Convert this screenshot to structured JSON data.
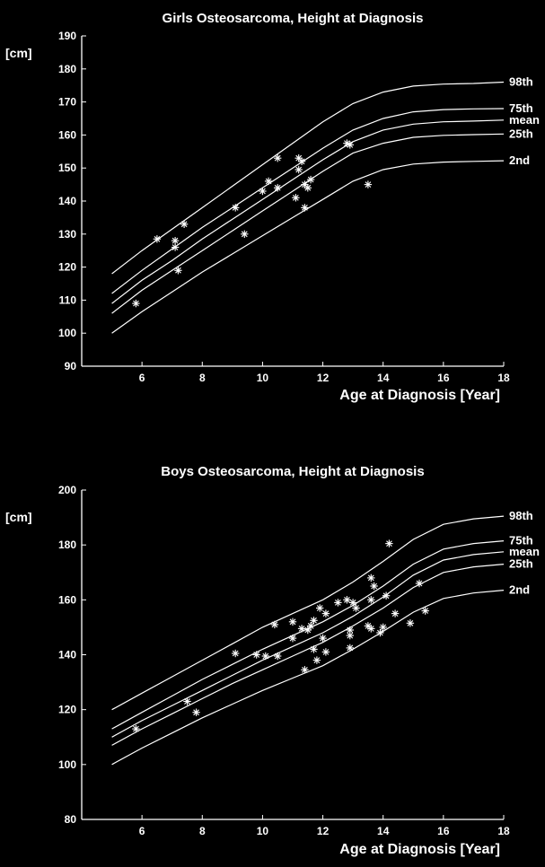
{
  "chart_data": [
    {
      "type": "line",
      "title": "Girls Osteosarcoma, Height at Diagnosis",
      "xlabel": "Age at Diagnosis [Year]",
      "ylabel": "[cm]",
      "xlim": [
        4,
        18
      ],
      "ylim": [
        90,
        190
      ],
      "xticks": [
        6,
        8,
        10,
        12,
        14,
        16,
        18
      ],
      "yticks": [
        90,
        100,
        110,
        120,
        130,
        140,
        150,
        160,
        170,
        180,
        190
      ],
      "grid": false,
      "legend": "none",
      "series": [
        {
          "name": "98th",
          "x": [
            5,
            6,
            7,
            8,
            9,
            10,
            11,
            12,
            13,
            14,
            15,
            16,
            17,
            18
          ],
          "y": [
            118,
            125,
            131.5,
            138,
            144.5,
            151,
            157.5,
            164,
            169.5,
            173,
            174.8,
            175.4,
            175.6,
            176
          ]
        },
        {
          "name": "75th",
          "x": [
            5,
            6,
            7,
            8,
            9,
            10,
            11,
            12,
            13,
            14,
            15,
            16,
            17,
            18
          ],
          "y": [
            112,
            119,
            125.5,
            132,
            138,
            144,
            150,
            156,
            161.5,
            165,
            167,
            167.7,
            167.9,
            168
          ]
        },
        {
          "name": "mean",
          "x": [
            5,
            6,
            7,
            8,
            9,
            10,
            11,
            12,
            13,
            14,
            15,
            16,
            17,
            18
          ],
          "y": [
            109,
            116,
            122,
            128.5,
            134.5,
            140.5,
            146.5,
            152.5,
            158,
            161.5,
            163.3,
            164,
            164.2,
            164.5
          ]
        },
        {
          "name": "25th",
          "x": [
            5,
            6,
            7,
            8,
            9,
            10,
            11,
            12,
            13,
            14,
            15,
            16,
            17,
            18
          ],
          "y": [
            106,
            113,
            119,
            125,
            131,
            137,
            143,
            149,
            154.5,
            157.5,
            159.3,
            159.9,
            160.1,
            160.3
          ]
        },
        {
          "name": "2nd",
          "x": [
            5,
            6,
            7,
            8,
            9,
            10,
            11,
            12,
            13,
            14,
            15,
            16,
            17,
            18
          ],
          "y": [
            100,
            106.5,
            112.5,
            118.5,
            124,
            129.5,
            135,
            140.5,
            146,
            149.5,
            151.2,
            151.8,
            152,
            152.2
          ]
        }
      ],
      "points": [
        {
          "x": 5.8,
          "y": 109
        },
        {
          "x": 6.5,
          "y": 128.5
        },
        {
          "x": 7.1,
          "y": 128
        },
        {
          "x": 7.1,
          "y": 126
        },
        {
          "x": 7.2,
          "y": 119
        },
        {
          "x": 7.4,
          "y": 133
        },
        {
          "x": 9.1,
          "y": 138
        },
        {
          "x": 9.4,
          "y": 130
        },
        {
          "x": 10.0,
          "y": 143
        },
        {
          "x": 10.2,
          "y": 146
        },
        {
          "x": 10.5,
          "y": 144
        },
        {
          "x": 10.5,
          "y": 153
        },
        {
          "x": 11.1,
          "y": 141
        },
        {
          "x": 11.2,
          "y": 149.5
        },
        {
          "x": 11.2,
          "y": 153
        },
        {
          "x": 11.3,
          "y": 152
        },
        {
          "x": 11.4,
          "y": 145
        },
        {
          "x": 11.4,
          "y": 138
        },
        {
          "x": 11.6,
          "y": 146.5
        },
        {
          "x": 11.5,
          "y": 144
        },
        {
          "x": 12.8,
          "y": 157.5
        },
        {
          "x": 12.9,
          "y": 157
        },
        {
          "x": 13.5,
          "y": 145
        }
      ]
    },
    {
      "type": "line",
      "title": "Boys Osteosarcoma, Height at Diagnosis",
      "xlabel": "Age at Diagnosis [Year]",
      "ylabel": "[cm]",
      "xlim": [
        4,
        18
      ],
      "ylim": [
        80,
        200
      ],
      "xticks": [
        6,
        8,
        10,
        12,
        14,
        16,
        18
      ],
      "yticks": [
        80,
        100,
        120,
        140,
        160,
        180,
        200
      ],
      "grid": false,
      "legend": "none",
      "series": [
        {
          "name": "98th",
          "x": [
            5,
            6,
            7,
            8,
            9,
            10,
            11,
            12,
            13,
            14,
            15,
            16,
            17,
            18
          ],
          "y": [
            120,
            126,
            132,
            138,
            144,
            150,
            155,
            160,
            166.5,
            174,
            182,
            187.5,
            189.5,
            190.5
          ]
        },
        {
          "name": "75th",
          "x": [
            5,
            6,
            7,
            8,
            9,
            10,
            11,
            12,
            13,
            14,
            15,
            16,
            17,
            18
          ],
          "y": [
            113,
            119,
            125,
            131,
            136.5,
            142,
            147,
            152,
            158,
            165,
            173,
            178.5,
            180.5,
            181.5
          ]
        },
        {
          "name": "mean",
          "x": [
            5,
            6,
            7,
            8,
            9,
            10,
            11,
            12,
            13,
            14,
            15,
            16,
            17,
            18
          ],
          "y": [
            110,
            116,
            121.5,
            127,
            132.5,
            138,
            143,
            148,
            154,
            161,
            169,
            174.5,
            176.5,
            177.5
          ]
        },
        {
          "name": "25th",
          "x": [
            5,
            6,
            7,
            8,
            9,
            10,
            11,
            12,
            13,
            14,
            15,
            16,
            17,
            18
          ],
          "y": [
            107,
            113,
            118.5,
            124,
            129.5,
            134.5,
            139.5,
            144.5,
            150.5,
            157,
            164.5,
            170,
            172,
            173
          ]
        },
        {
          "name": "2nd",
          "x": [
            5,
            6,
            7,
            8,
            9,
            10,
            11,
            12,
            13,
            14,
            15,
            16,
            17,
            18
          ],
          "y": [
            100,
            106,
            111.5,
            117,
            122,
            127,
            131.5,
            136,
            142,
            148.5,
            155.5,
            160.5,
            162.5,
            163.5
          ]
        }
      ],
      "points": [
        {
          "x": 5.8,
          "y": 113
        },
        {
          "x": 7.5,
          "y": 123
        },
        {
          "x": 7.8,
          "y": 119
        },
        {
          "x": 9.1,
          "y": 140.5
        },
        {
          "x": 9.8,
          "y": 140
        },
        {
          "x": 10.1,
          "y": 139.5
        },
        {
          "x": 10.4,
          "y": 151
        },
        {
          "x": 10.5,
          "y": 139.5
        },
        {
          "x": 11.0,
          "y": 146
        },
        {
          "x": 11.0,
          "y": 152
        },
        {
          "x": 11.3,
          "y": 149.5
        },
        {
          "x": 11.4,
          "y": 134.5
        },
        {
          "x": 11.5,
          "y": 149
        },
        {
          "x": 11.6,
          "y": 150.5
        },
        {
          "x": 11.7,
          "y": 152.5
        },
        {
          "x": 11.7,
          "y": 142
        },
        {
          "x": 11.8,
          "y": 138
        },
        {
          "x": 11.9,
          "y": 157
        },
        {
          "x": 12.0,
          "y": 146
        },
        {
          "x": 12.1,
          "y": 141
        },
        {
          "x": 12.1,
          "y": 155
        },
        {
          "x": 12.5,
          "y": 159
        },
        {
          "x": 12.8,
          "y": 160
        },
        {
          "x": 12.9,
          "y": 149
        },
        {
          "x": 12.9,
          "y": 147
        },
        {
          "x": 12.9,
          "y": 142.5
        },
        {
          "x": 13.0,
          "y": 159
        },
        {
          "x": 13.1,
          "y": 157
        },
        {
          "x": 13.5,
          "y": 150.5
        },
        {
          "x": 13.6,
          "y": 149.5
        },
        {
          "x": 13.6,
          "y": 160
        },
        {
          "x": 13.6,
          "y": 168
        },
        {
          "x": 13.7,
          "y": 165
        },
        {
          "x": 13.9,
          "y": 148
        },
        {
          "x": 14.0,
          "y": 150
        },
        {
          "x": 14.1,
          "y": 161.5
        },
        {
          "x": 14.2,
          "y": 180.5
        },
        {
          "x": 14.4,
          "y": 155
        },
        {
          "x": 14.9,
          "y": 151.5
        },
        {
          "x": 15.2,
          "y": 166
        },
        {
          "x": 15.4,
          "y": 156
        }
      ]
    }
  ]
}
